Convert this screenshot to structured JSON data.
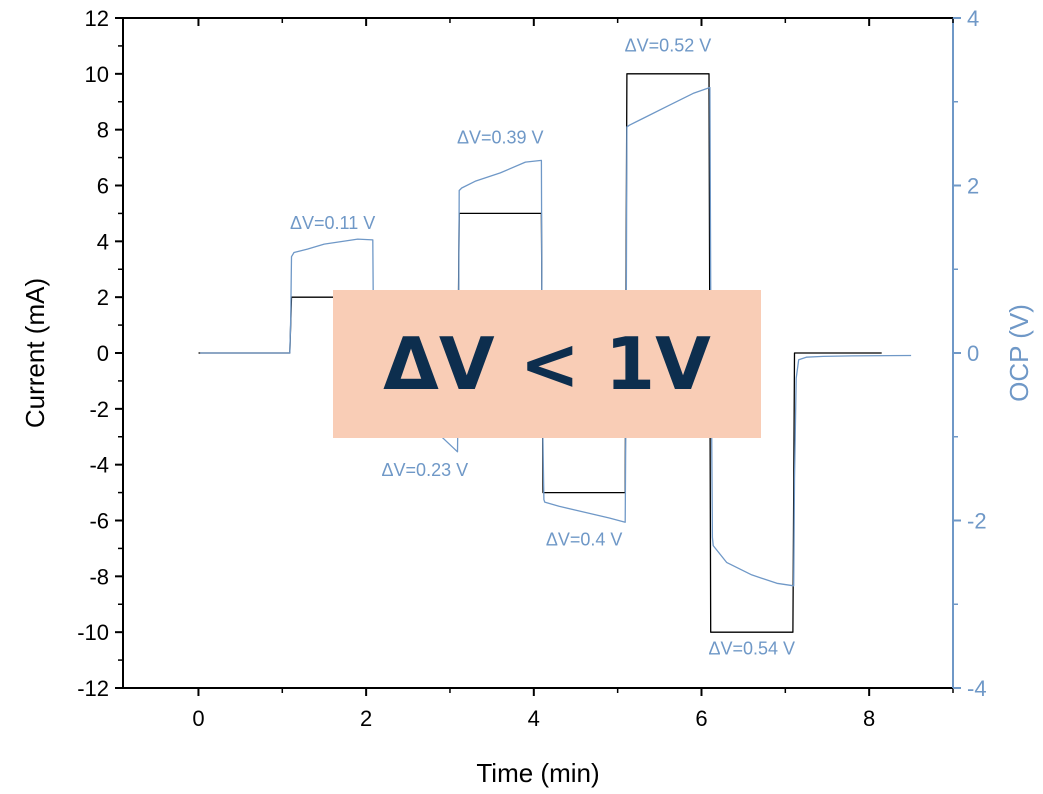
{
  "colors": {
    "current": "#000000",
    "ocp": "#6f98c7",
    "callout_bg": "#f9cdb6",
    "callout_text": "#0d2e4e"
  },
  "callout": {
    "text": "ΔV < 1V"
  },
  "chart_data": {
    "type": "line",
    "xlabel": "Time (min)",
    "ylabel": "Current (mA)",
    "y2label": "OCP (V)",
    "xlim": [
      -0.9,
      9
    ],
    "ylim": [
      -12,
      12
    ],
    "y2lim": [
      -4,
      4
    ],
    "xticks": [
      0,
      2,
      4,
      6,
      8
    ],
    "yticks": [
      12,
      10,
      8,
      6,
      4,
      2,
      0,
      -2,
      -4,
      -6,
      -8,
      -10,
      -12
    ],
    "y2ticks": [
      4,
      2,
      0,
      -2,
      -4
    ],
    "series": [
      {
        "axis": "left",
        "x": [
          0,
          1.09,
          1.11,
          2.09,
          2.11,
          3.09,
          3.11,
          4.09,
          4.11,
          5.09,
          5.11,
          6.09,
          6.11,
          7.09,
          7.11,
          8.15
        ],
        "values": [
          0,
          0,
          2,
          2,
          -2,
          -2,
          5,
          5,
          -5,
          -5,
          10,
          10,
          -10,
          -10,
          0,
          0
        ]
      },
      {
        "axis": "right",
        "x": [
          0.02,
          0.5,
          1.09,
          1.1,
          1.11,
          1.14,
          1.3,
          1.5,
          1.7,
          1.9,
          2.08,
          2.09,
          2.12,
          2.13,
          2.3,
          2.6,
          2.9,
          3.09,
          3.1,
          3.11,
          3.14,
          3.3,
          3.6,
          3.9,
          4.09,
          4.1,
          4.12,
          4.13,
          4.3,
          4.6,
          4.9,
          5.09,
          5.1,
          5.11,
          5.14,
          5.3,
          5.6,
          5.9,
          6.1,
          6.11,
          6.13,
          6.14,
          6.3,
          6.6,
          6.9,
          7.1,
          7.11,
          7.13,
          7.16,
          7.25,
          7.45,
          7.8,
          8.5
        ],
        "values": [
          0.0,
          0.0,
          0.0,
          0.4,
          1.15,
          1.2,
          1.24,
          1.3,
          1.33,
          1.36,
          1.35,
          -0.1,
          -0.65,
          -0.72,
          -0.8,
          -0.9,
          -1.0,
          -1.18,
          -0.3,
          1.94,
          1.97,
          2.05,
          2.15,
          2.28,
          2.3,
          -0.5,
          -1.75,
          -1.78,
          -1.83,
          -1.9,
          -1.97,
          -2.02,
          -0.5,
          2.7,
          2.72,
          2.8,
          2.95,
          3.1,
          3.17,
          0.8,
          -2.2,
          -2.3,
          -2.5,
          -2.65,
          -2.75,
          -2.78,
          -1.5,
          -0.3,
          -0.08,
          -0.05,
          -0.04,
          -0.035,
          -0.03
        ]
      }
    ],
    "annotations": [
      {
        "text": "ΔV=0.11 V",
        "x": 1.6,
        "y": 4.45,
        "axis": "left"
      },
      {
        "text": "ΔV=0.23 V",
        "x": 2.7,
        "y": -4.4,
        "axis": "left"
      },
      {
        "text": "ΔV=0.39 V",
        "x": 3.6,
        "y": 7.5,
        "axis": "left"
      },
      {
        "text": "ΔV=0.4 V",
        "x": 4.6,
        "y": -6.9,
        "axis": "left"
      },
      {
        "text": "ΔV=0.52 V",
        "x": 5.6,
        "y": 10.8,
        "axis": "left"
      },
      {
        "text": "ΔV=0.54 V",
        "x": 6.6,
        "y": -10.8,
        "axis": "left"
      }
    ]
  }
}
